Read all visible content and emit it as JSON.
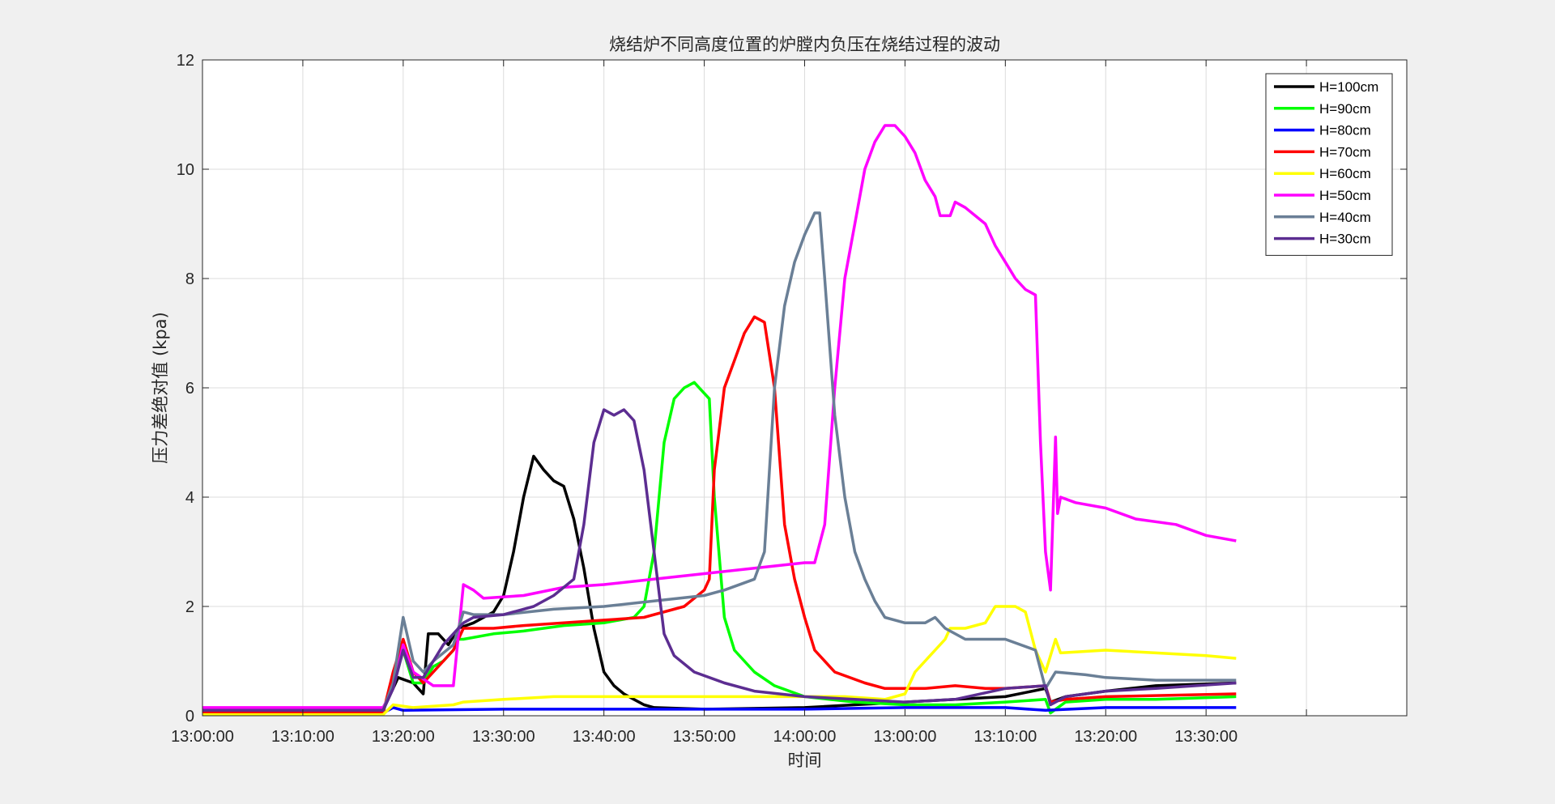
{
  "chart_data": {
    "type": "line",
    "title": "烧结炉不同高度位置的炉膛内负压在烧结过程的波动",
    "xlabel": "时间",
    "ylabel": "压力差绝对值 (kpa)",
    "ylim": [
      0,
      12
    ],
    "yticks": [
      "0",
      "2",
      "4",
      "6",
      "8",
      "10",
      "12"
    ],
    "xlim_minutes": [
      0,
      120
    ],
    "xticks": [
      "13:00:00",
      "13:10:00",
      "13:20:00",
      "13:30:00",
      "13:40:00",
      "13:50:00",
      "14:00:00",
      "13:00:00",
      "13:10:00",
      "13:20:00",
      "13:30:00"
    ],
    "grid": true,
    "legend_position": "top-right",
    "series": [
      {
        "name": "H=100cm",
        "color": "#000000",
        "points": [
          [
            0,
            0.1
          ],
          [
            18,
            0.1
          ],
          [
            18.5,
            0.3
          ],
          [
            19.5,
            0.7
          ],
          [
            21,
            0.6
          ],
          [
            21.5,
            0.5
          ],
          [
            22,
            0.4
          ],
          [
            22.5,
            1.5
          ],
          [
            23.5,
            1.5
          ],
          [
            24.5,
            1.3
          ],
          [
            25.5,
            1.6
          ],
          [
            27,
            1.7
          ],
          [
            29,
            1.9
          ],
          [
            30,
            2.2
          ],
          [
            31,
            3
          ],
          [
            32,
            4
          ],
          [
            33,
            4.75
          ],
          [
            34,
            4.5
          ],
          [
            35,
            4.3
          ],
          [
            36,
            4.2
          ],
          [
            37,
            3.6
          ],
          [
            38,
            2.7
          ],
          [
            39,
            1.6
          ],
          [
            40,
            0.8
          ],
          [
            41,
            0.55
          ],
          [
            42,
            0.4
          ],
          [
            43,
            0.3
          ],
          [
            44,
            0.2
          ],
          [
            45,
            0.15
          ],
          [
            50,
            0.12
          ],
          [
            60,
            0.15
          ],
          [
            70,
            0.25
          ],
          [
            80,
            0.35
          ],
          [
            84,
            0.5
          ],
          [
            84.5,
            0.25
          ],
          [
            86,
            0.35
          ],
          [
            90,
            0.45
          ],
          [
            95,
            0.55
          ],
          [
            103,
            0.6
          ]
        ]
      },
      {
        "name": "H=90cm",
        "color": "#00ff00",
        "points": [
          [
            0,
            0.05
          ],
          [
            18,
            0.05
          ],
          [
            19,
            0.7
          ],
          [
            20,
            1.2
          ],
          [
            21,
            0.6
          ],
          [
            22,
            0.6
          ],
          [
            23,
            0.9
          ],
          [
            24,
            1.0
          ],
          [
            25,
            1.2
          ],
          [
            25.5,
            1.4
          ],
          [
            26,
            1.4
          ],
          [
            29,
            1.5
          ],
          [
            32,
            1.55
          ],
          [
            36,
            1.65
          ],
          [
            40,
            1.7
          ],
          [
            43,
            1.8
          ],
          [
            44,
            2.0
          ],
          [
            45,
            3.0
          ],
          [
            46,
            5.0
          ],
          [
            47,
            5.8
          ],
          [
            48,
            6.0
          ],
          [
            49,
            6.1
          ],
          [
            50,
            5.9
          ],
          [
            50.5,
            5.8
          ],
          [
            51,
            4.0
          ],
          [
            52,
            1.8
          ],
          [
            53,
            1.2
          ],
          [
            55,
            0.8
          ],
          [
            57,
            0.55
          ],
          [
            60,
            0.35
          ],
          [
            65,
            0.25
          ],
          [
            70,
            0.2
          ],
          [
            75,
            0.2
          ],
          [
            80,
            0.25
          ],
          [
            84,
            0.3
          ],
          [
            84.5,
            0.05
          ],
          [
            86,
            0.25
          ],
          [
            90,
            0.3
          ],
          [
            95,
            0.3
          ],
          [
            103,
            0.35
          ]
        ]
      },
      {
        "name": "H=80cm",
        "color": "#0000ff",
        "points": [
          [
            0,
            0.05
          ],
          [
            18,
            0.05
          ],
          [
            19,
            0.15
          ],
          [
            20,
            0.1
          ],
          [
            30,
            0.12
          ],
          [
            40,
            0.12
          ],
          [
            50,
            0.12
          ],
          [
            60,
            0.12
          ],
          [
            70,
            0.15
          ],
          [
            80,
            0.15
          ],
          [
            84,
            0.1
          ],
          [
            90,
            0.15
          ],
          [
            103,
            0.15
          ]
        ]
      },
      {
        "name": "H=70cm",
        "color": "#ff0000",
        "points": [
          [
            0,
            0.05
          ],
          [
            18,
            0.05
          ],
          [
            19,
            0.8
          ],
          [
            20,
            1.4
          ],
          [
            21,
            0.8
          ],
          [
            22,
            0.6
          ],
          [
            23,
            0.8
          ],
          [
            25,
            1.2
          ],
          [
            26,
            1.6
          ],
          [
            29,
            1.6
          ],
          [
            32,
            1.65
          ],
          [
            36,
            1.7
          ],
          [
            40,
            1.75
          ],
          [
            44,
            1.8
          ],
          [
            48,
            2.0
          ],
          [
            50,
            2.3
          ],
          [
            50.5,
            2.5
          ],
          [
            51,
            4.5
          ],
          [
            52,
            6.0
          ],
          [
            53,
            6.5
          ],
          [
            54,
            7.0
          ],
          [
            55,
            7.3
          ],
          [
            56,
            7.2
          ],
          [
            57,
            6.0
          ],
          [
            58,
            3.5
          ],
          [
            59,
            2.5
          ],
          [
            60,
            1.8
          ],
          [
            61,
            1.2
          ],
          [
            63,
            0.8
          ],
          [
            66,
            0.6
          ],
          [
            68,
            0.5
          ],
          [
            72,
            0.5
          ],
          [
            75,
            0.55
          ],
          [
            78,
            0.5
          ],
          [
            80,
            0.5
          ],
          [
            84,
            0.55
          ],
          [
            84.5,
            0.25
          ],
          [
            86,
            0.3
          ],
          [
            90,
            0.35
          ],
          [
            103,
            0.4
          ]
        ]
      },
      {
        "name": "H=60cm",
        "color": "#ffff00",
        "points": [
          [
            0,
            0.02
          ],
          [
            18,
            0.02
          ],
          [
            19,
            0.2
          ],
          [
            21,
            0.15
          ],
          [
            25,
            0.2
          ],
          [
            26,
            0.25
          ],
          [
            30,
            0.3
          ],
          [
            35,
            0.35
          ],
          [
            40,
            0.35
          ],
          [
            50,
            0.35
          ],
          [
            60,
            0.35
          ],
          [
            64,
            0.35
          ],
          [
            68,
            0.3
          ],
          [
            70,
            0.4
          ],
          [
            71,
            0.8
          ],
          [
            72,
            1.0
          ],
          [
            73,
            1.2
          ],
          [
            74,
            1.4
          ],
          [
            74.5,
            1.6
          ],
          [
            76,
            1.6
          ],
          [
            78,
            1.7
          ],
          [
            79,
            2.0
          ],
          [
            81,
            2.0
          ],
          [
            82,
            1.9
          ],
          [
            83,
            1.2
          ],
          [
            84,
            0.8
          ],
          [
            85,
            1.4
          ],
          [
            85.5,
            1.15
          ],
          [
            90,
            1.2
          ],
          [
            95,
            1.15
          ],
          [
            100,
            1.1
          ],
          [
            103,
            1.05
          ]
        ]
      },
      {
        "name": "H=50cm",
        "color": "#ff00ff",
        "points": [
          [
            0,
            0.15
          ],
          [
            18,
            0.15
          ],
          [
            19,
            0.5
          ],
          [
            20,
            1.3
          ],
          [
            21,
            0.8
          ],
          [
            23,
            0.55
          ],
          [
            25,
            0.55
          ],
          [
            26,
            2.4
          ],
          [
            27,
            2.3
          ],
          [
            28,
            2.15
          ],
          [
            32,
            2.2
          ],
          [
            36,
            2.35
          ],
          [
            40,
            2.4
          ],
          [
            45,
            2.5
          ],
          [
            50,
            2.6
          ],
          [
            55,
            2.7
          ],
          [
            60,
            2.8
          ],
          [
            61,
            2.8
          ],
          [
            62,
            3.5
          ],
          [
            63,
            6.0
          ],
          [
            64,
            8.0
          ],
          [
            65,
            9.0
          ],
          [
            66,
            10.0
          ],
          [
            67,
            10.5
          ],
          [
            68,
            10.8
          ],
          [
            69,
            10.8
          ],
          [
            70,
            10.6
          ],
          [
            71,
            10.3
          ],
          [
            72,
            9.8
          ],
          [
            73,
            9.5
          ],
          [
            73.5,
            9.15
          ],
          [
            74.5,
            9.15
          ],
          [
            75,
            9.4
          ],
          [
            76,
            9.3
          ],
          [
            78,
            9.0
          ],
          [
            79,
            8.6
          ],
          [
            80,
            8.3
          ],
          [
            81,
            8.0
          ],
          [
            82,
            7.8
          ],
          [
            83,
            7.7
          ],
          [
            83.5,
            5.0
          ],
          [
            84,
            3.0
          ],
          [
            84.5,
            2.3
          ],
          [
            85,
            5.1
          ],
          [
            85.2,
            3.7
          ],
          [
            85.5,
            4.0
          ],
          [
            87,
            3.9
          ],
          [
            90,
            3.8
          ],
          [
            93,
            3.6
          ],
          [
            97,
            3.5
          ],
          [
            100,
            3.3
          ],
          [
            103,
            3.2
          ]
        ]
      },
      {
        "name": "H=40cm",
        "color": "#6a7f96",
        "points": [
          [
            0,
            0.1
          ],
          [
            18,
            0.1
          ],
          [
            19,
            0.6
          ],
          [
            20,
            1.8
          ],
          [
            21,
            1.0
          ],
          [
            22,
            0.8
          ],
          [
            23,
            1.0
          ],
          [
            25,
            1.3
          ],
          [
            26,
            1.9
          ],
          [
            27,
            1.85
          ],
          [
            30,
            1.85
          ],
          [
            35,
            1.95
          ],
          [
            40,
            2.0
          ],
          [
            45,
            2.1
          ],
          [
            50,
            2.2
          ],
          [
            52,
            2.3
          ],
          [
            55,
            2.5
          ],
          [
            56,
            3.0
          ],
          [
            57,
            6.0
          ],
          [
            58,
            7.5
          ],
          [
            59,
            8.3
          ],
          [
            60,
            8.8
          ],
          [
            61,
            9.2
          ],
          [
            61.5,
            9.2
          ],
          [
            62,
            8.0
          ],
          [
            63,
            5.5
          ],
          [
            64,
            4.0
          ],
          [
            65,
            3.0
          ],
          [
            66,
            2.5
          ],
          [
            67,
            2.1
          ],
          [
            68,
            1.8
          ],
          [
            70,
            1.7
          ],
          [
            72,
            1.7
          ],
          [
            73,
            1.8
          ],
          [
            74,
            1.6
          ],
          [
            76,
            1.4
          ],
          [
            80,
            1.4
          ],
          [
            83,
            1.2
          ],
          [
            84,
            0.5
          ],
          [
            85,
            0.8
          ],
          [
            88,
            0.75
          ],
          [
            90,
            0.7
          ],
          [
            95,
            0.65
          ],
          [
            103,
            0.65
          ]
        ]
      },
      {
        "name": "H=30cm",
        "color": "#5c2d91",
        "points": [
          [
            0,
            0.1
          ],
          [
            18,
            0.1
          ],
          [
            19,
            0.5
          ],
          [
            20,
            1.2
          ],
          [
            21,
            0.7
          ],
          [
            22,
            0.7
          ],
          [
            23,
            1.0
          ],
          [
            24,
            1.3
          ],
          [
            25,
            1.5
          ],
          [
            26,
            1.7
          ],
          [
            27,
            1.8
          ],
          [
            30,
            1.85
          ],
          [
            33,
            2.0
          ],
          [
            35,
            2.2
          ],
          [
            37,
            2.5
          ],
          [
            38,
            3.5
          ],
          [
            39,
            5.0
          ],
          [
            40,
            5.6
          ],
          [
            41,
            5.5
          ],
          [
            42,
            5.6
          ],
          [
            43,
            5.4
          ],
          [
            44,
            4.5
          ],
          [
            45,
            3.0
          ],
          [
            46,
            1.5
          ],
          [
            47,
            1.1
          ],
          [
            49,
            0.8
          ],
          [
            52,
            0.6
          ],
          [
            55,
            0.45
          ],
          [
            60,
            0.35
          ],
          [
            65,
            0.3
          ],
          [
            70,
            0.25
          ],
          [
            75,
            0.3
          ],
          [
            80,
            0.5
          ],
          [
            84,
            0.55
          ],
          [
            84.5,
            0.2
          ],
          [
            86,
            0.35
          ],
          [
            90,
            0.45
          ],
          [
            95,
            0.5
          ],
          [
            103,
            0.6
          ]
        ]
      }
    ]
  }
}
